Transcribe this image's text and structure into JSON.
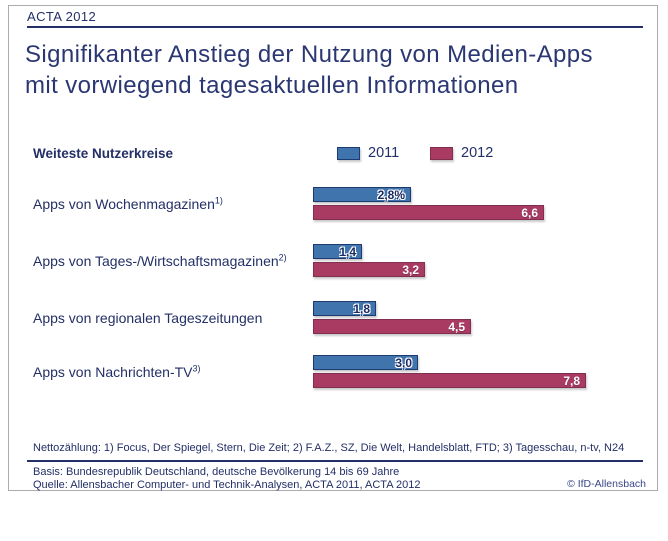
{
  "header": {
    "tag": "ACTA 2012"
  },
  "title": {
    "line1": "Signifikanter Anstieg der Nutzung von Medien-Apps",
    "line2": "mit vorwiegend tagesaktuellen Informationen"
  },
  "legend": {
    "label": "Weiteste Nutzerkreise",
    "items": [
      {
        "name": "2011",
        "color": "#4074ad"
      },
      {
        "name": "2012",
        "color": "#a93b63"
      }
    ]
  },
  "chart_data": {
    "type": "bar",
    "orientation": "horizontal",
    "title": "Signifikanter Anstieg der Nutzung von Medien-Apps mit vorwiegend tagesaktuellen Informationen",
    "unit": "percent (Weiteste Nutzerkreise)",
    "xlim": [
      0,
      8.5
    ],
    "grid": false,
    "legend_position": "top",
    "categories": [
      "Apps von Wochenmagazinen",
      "Apps von Tages-/Wirtschaftsmagazinen",
      "Apps von regionalen Tageszeitungen",
      "Apps von Nachrichten-TV"
    ],
    "category_superscripts": [
      "1)",
      "2)",
      "",
      "3)"
    ],
    "series": [
      {
        "name": "2011",
        "color": "#4074ad",
        "values": [
          2.8,
          1.4,
          1.8,
          3.0
        ],
        "labels": [
          "2,8%",
          "1,4",
          "1,8",
          "3,0"
        ]
      },
      {
        "name": "2012",
        "color": "#a93b63",
        "values": [
          6.6,
          3.2,
          4.5,
          7.8
        ],
        "labels": [
          "6,6",
          "3,2",
          "4,5",
          "7,8"
        ]
      }
    ]
  },
  "footnote": "Nettozählung: 1) Focus, Der Spiegel, Stern, Die Zeit; 2) F.A.Z., SZ, Die Welt, Handelsblatt, FTD; 3) Tagesschau, n-tv, N24",
  "footer": {
    "basis": "Basis: Bundesrepublik Deutschland, deutsche Bevölkerung 14 bis 69 Jahre",
    "quelle": "Quelle: Allensbacher Computer- und Technik-Analysen, ACTA 2011, ACTA 2012",
    "copyright": "© IfD-Allensbach"
  },
  "colors": {
    "navy_text": "#232f66",
    "bar_2011": "#4074ad",
    "bar_2012": "#a93b63",
    "frame_border": "#ababab"
  }
}
